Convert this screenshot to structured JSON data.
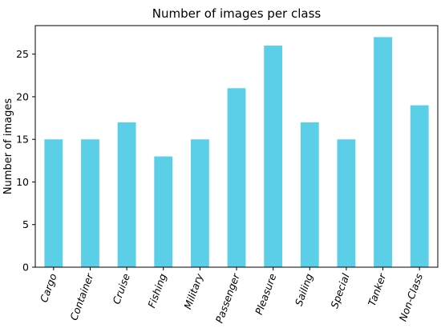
{
  "chart_data": {
    "type": "bar",
    "title": "Number of images per class",
    "xlabel": "",
    "ylabel": "Number of images",
    "categories": [
      "Cargo",
      "Container",
      "Cruise",
      "Fishing",
      "Military",
      "Passenger",
      "Pleasure",
      "Sailing",
      "Special",
      "Tanker",
      "Non-Class"
    ],
    "values": [
      15,
      15,
      17,
      13,
      15,
      21,
      26,
      17,
      15,
      27,
      19
    ],
    "ylim": [
      0,
      28.35
    ],
    "yticks": [
      0,
      5,
      10,
      15,
      20,
      25
    ],
    "grid": false,
    "legend": "none",
    "bar_color": "#5bcfe8"
  }
}
